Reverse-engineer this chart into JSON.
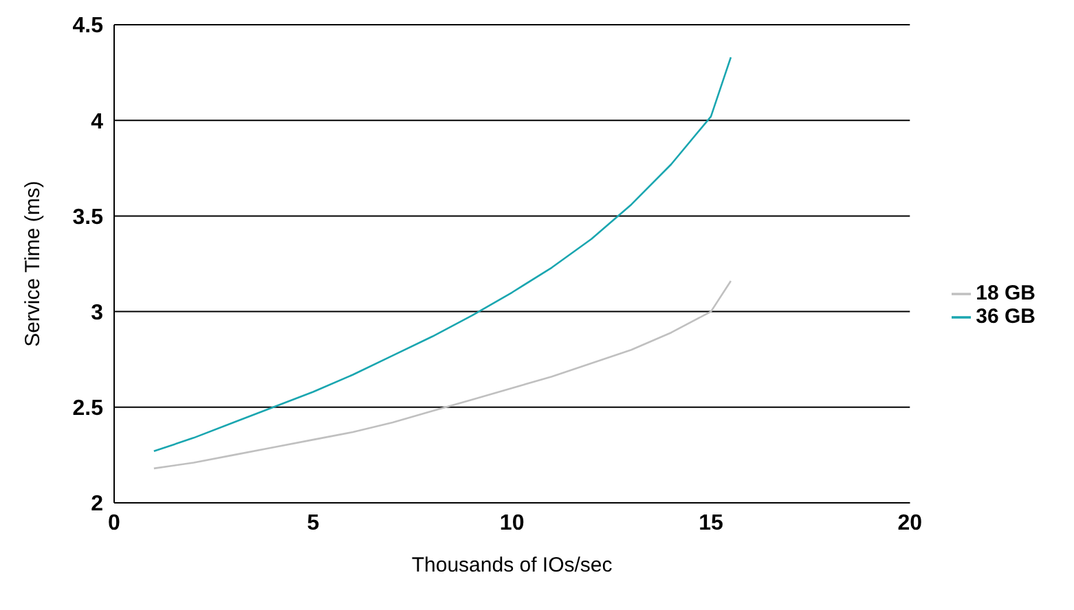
{
  "chart_data": {
    "type": "line",
    "xlabel": "Thousands of IOs/sec",
    "ylabel": "Service Time (ms)",
    "x": [
      1,
      2,
      3,
      4,
      5,
      6,
      7,
      8,
      9,
      10,
      11,
      12,
      13,
      14,
      15,
      15.5
    ],
    "series": [
      {
        "name": "18 GB",
        "color": "#c0c0c0",
        "values": [
          2.18,
          2.21,
          2.25,
          2.29,
          2.33,
          2.37,
          2.42,
          2.48,
          2.54,
          2.6,
          2.66,
          2.73,
          2.8,
          2.89,
          3.0,
          3.16
        ]
      },
      {
        "name": "36 GB",
        "color": "#1aa6b0",
        "values": [
          2.27,
          2.34,
          2.42,
          2.5,
          2.58,
          2.67,
          2.77,
          2.87,
          2.98,
          3.1,
          3.23,
          3.38,
          3.56,
          3.77,
          4.02,
          4.33
        ]
      }
    ],
    "xlim": [
      0,
      20
    ],
    "xticks": [
      0,
      5,
      10,
      15,
      20
    ],
    "ylim": [
      2,
      4.5
    ],
    "yticks": [
      2,
      2.5,
      3,
      3.5,
      4,
      4.5
    ],
    "grid": "y",
    "legend": "right",
    "marker": "none",
    "line_style": "solid"
  }
}
